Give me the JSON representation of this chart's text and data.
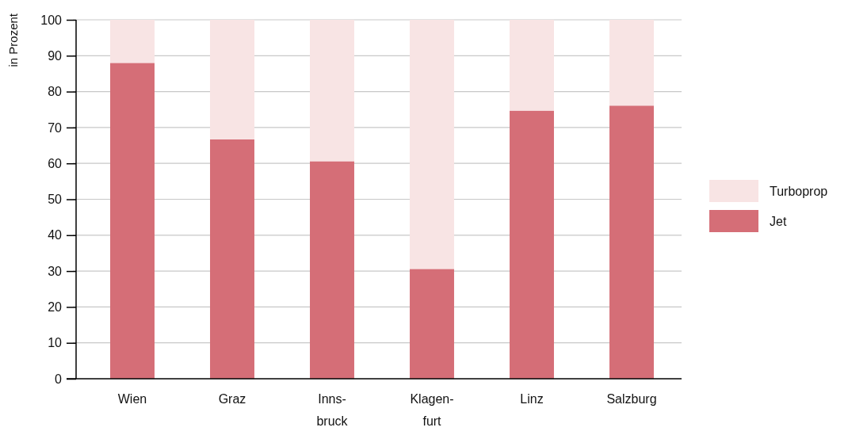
{
  "chart_data": {
    "type": "bar",
    "stacked": true,
    "ylabel": "in Prozent",
    "categories": [
      "Wien",
      "Graz",
      "Inns-bruck",
      "Klagen-furt",
      "Linz",
      "Salzburg"
    ],
    "series": [
      {
        "name": "Jet",
        "color": "#d56e77",
        "values": [
          88,
          66.7,
          60.6,
          30.6,
          74.7,
          76.1
        ]
      },
      {
        "name": "Turboprop",
        "color": "#f8e4e4",
        "values": [
          12,
          33.3,
          39.4,
          69.4,
          25.3,
          23.9
        ]
      }
    ],
    "ylim": [
      0,
      100
    ],
    "yticks": [
      0,
      10,
      20,
      30,
      40,
      50,
      60,
      70,
      80,
      90,
      100
    ],
    "grid": "y",
    "legend": "right"
  }
}
